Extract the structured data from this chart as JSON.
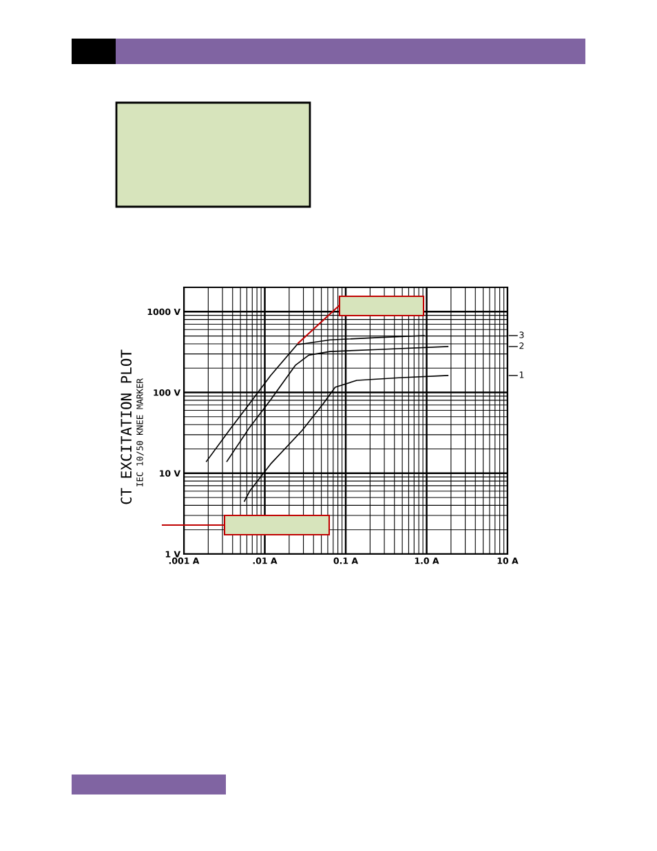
{
  "chart_data": {
    "type": "line",
    "title": "CT EXCITATION PLOT",
    "subtitle": "IEC 10/50 KNEE MARKER",
    "log": "xy",
    "grid": true,
    "legend": "right",
    "marker": "none",
    "line_style": "solid",
    "xlim": [
      0.001,
      10
    ],
    "ylim": [
      1,
      2000
    ],
    "xticks": [
      {
        "value": 0.001,
        "label": ".001 A"
      },
      {
        "value": 0.01,
        "label": ".01 A"
      },
      {
        "value": 0.1,
        "label": "0.1 A"
      },
      {
        "value": 1,
        "label": "1.0 A"
      },
      {
        "value": 10,
        "label": "10 A"
      }
    ],
    "yticks": [
      {
        "value": 1,
        "label": "1 V"
      },
      {
        "value": 10,
        "label": "10 V"
      },
      {
        "value": 100,
        "label": "100 V"
      },
      {
        "value": 1000,
        "label": "1000 V"
      }
    ],
    "series": [
      {
        "name": "3",
        "color": "#000000",
        "x": [
          0.0019,
          0.0038,
          0.0065,
          0.0118,
          0.025,
          0.064,
          0.25,
          0.93
        ],
        "values": [
          14,
          36,
          73,
          162,
          390,
          447,
          478,
          505
        ]
      },
      {
        "name": "2",
        "color": "#000000",
        "x": [
          0.0034,
          0.0065,
          0.0118,
          0.024,
          0.035,
          0.064,
          0.25,
          1.83
        ],
        "values": [
          14,
          37,
          81,
          218,
          290,
          321,
          340,
          370
        ]
      },
      {
        "name": "1",
        "color": "#000000",
        "x": [
          0.0056,
          0.0065,
          0.0118,
          0.029,
          0.053,
          0.074,
          0.137,
          0.45,
          1.83
        ],
        "values": [
          4.5,
          6.0,
          13,
          34,
          73,
          116,
          141,
          152,
          162
        ]
      }
    ]
  }
}
